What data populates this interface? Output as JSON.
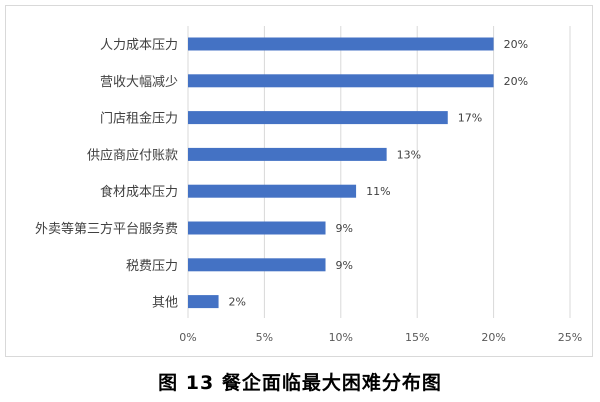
{
  "caption": "图 13  餐企面临最大困难分布图",
  "chart_data": {
    "type": "bar",
    "orientation": "horizontal",
    "categories": [
      "人力成本压力",
      "营收大幅减少",
      "门店租金压力",
      "供应商应付账款",
      "食材成本压力",
      "外卖等第三方平台服务费",
      "税费压力",
      "其他"
    ],
    "values": [
      20,
      20,
      17,
      13,
      11,
      9,
      9,
      2
    ],
    "value_labels": [
      "20%",
      "20%",
      "17%",
      "13%",
      "11%",
      "9%",
      "9%",
      "2%"
    ],
    "x_ticks": [
      0,
      5,
      10,
      15,
      20,
      25
    ],
    "x_tick_labels": [
      "0%",
      "5%",
      "10%",
      "15%",
      "20%",
      "25%"
    ],
    "xlim": [
      0,
      25
    ],
    "grid": true,
    "colors": {
      "bar": "#4472c4",
      "grid": "#d9d9d9"
    }
  }
}
